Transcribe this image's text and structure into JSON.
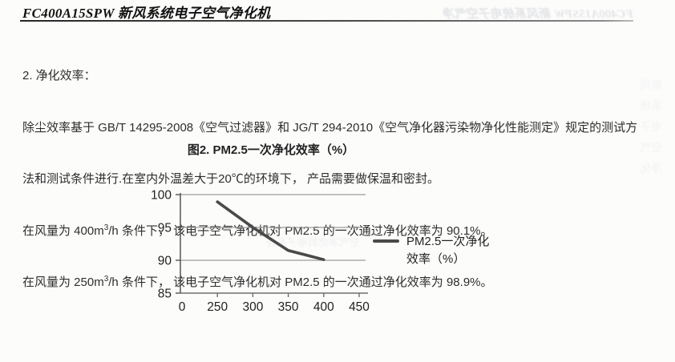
{
  "header": {
    "title": "FC400A15SPW 新风系统电子空气净化机"
  },
  "body_text": {
    "heading": "2.   净化效率：",
    "line1": "除尘效率基于 GB/T 14295-2008《空气过滤器》和 JG/T 294-2010《空气净化器污染物净化性能测定》规定的测试方",
    "line2": "法和测试条件进行.在室内外温差大于20℃的环境下， 产品需要做保温和密封。",
    "line3": {
      "pre": "在风量为 400m",
      "sup": "3",
      "post": "/h 条件下， 该电子空气净化机对 PM2.5 的一次通过净化效率为 90.1%。"
    },
    "line4": {
      "pre": "在风量为 250m",
      "sup": "3",
      "post": "/h 条件下， 该电子空气净化机对 PM2.5 的一次通过净化效率为 98.9%。"
    }
  },
  "figure": {
    "caption": "图2. PM2.5一次净化效率（%）",
    "legend": {
      "line1": "PM2.5一次净化",
      "line2": "效率（%）"
    }
  },
  "chart_data": {
    "type": "line",
    "title": "图2. PM2.5一次净化效率（%）",
    "categories": [
      "0",
      "250",
      "300",
      "350",
      "400",
      "450"
    ],
    "series": [
      {
        "name": "PM2.5一次净化效率（%）",
        "points": [
          {
            "category": "250",
            "value": 98.9
          },
          {
            "category": "300",
            "value": 95.0
          },
          {
            "category": "350",
            "value": 91.5
          },
          {
            "category": "400",
            "value": 90.1
          }
        ]
      }
    ],
    "ylim": [
      85,
      100
    ],
    "yticks": [
      85,
      90,
      95,
      100
    ],
    "grid": true,
    "legend_position": "right",
    "line_color": "#4a4a4a",
    "grid_color": "#9b9b9b",
    "axis_color": "#6e6e6e",
    "tick_label_color": "#1f1f1f"
  },
  "scan_artifacts": {
    "bleed_top_right": "FC400A15SPW 新风系统电子空气净",
    "bleed_chart_area": "空气净化机电子系统",
    "bleed_right_edge": "新风系统电子空气净化"
  }
}
